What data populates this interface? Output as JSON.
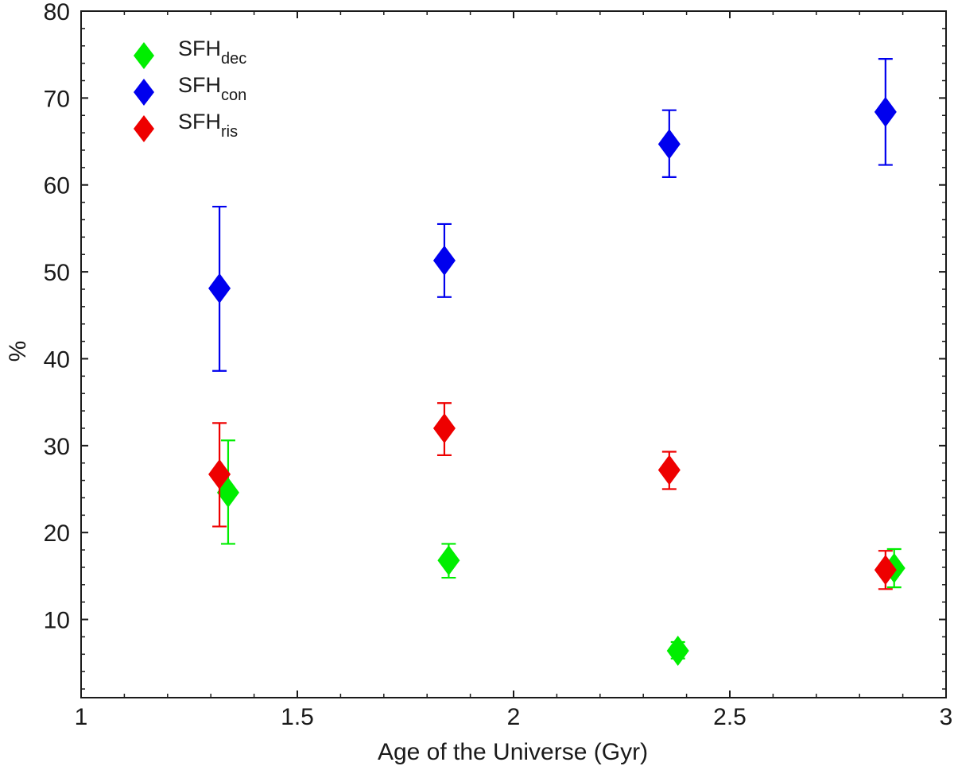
{
  "chart_data": {
    "type": "scatter",
    "xlabel": "Age of the Universe (Gyr)",
    "ylabel": "%",
    "xlim": [
      1,
      3
    ],
    "ylim": [
      1,
      80
    ],
    "xticks": [
      1,
      1.5,
      2,
      2.5,
      3
    ],
    "xtick_labels": [
      "1",
      "1.5",
      "2",
      "2.5",
      "3"
    ],
    "yticks": [
      10,
      20,
      30,
      40,
      50,
      60,
      70,
      80
    ],
    "ytick_labels": [
      "10",
      "20",
      "30",
      "40",
      "50",
      "60",
      "70",
      "80"
    ],
    "x_minor_step": 0.1,
    "y_minor_step": 2,
    "grid": false,
    "legend_position": "top-left",
    "series": [
      {
        "name_main": "SFH",
        "name_sub": "dec",
        "color": "#00ee00",
        "points": [
          {
            "x": 1.34,
            "y": 24.6,
            "err_low": 18.7,
            "err_high": 30.6
          },
          {
            "x": 1.85,
            "y": 16.8,
            "err_low": 14.8,
            "err_high": 18.7
          },
          {
            "x": 2.38,
            "y": 6.4,
            "err_low": 5.5,
            "err_high": 7.4
          },
          {
            "x": 2.88,
            "y": 15.9,
            "err_low": 13.7,
            "err_high": 18.1
          }
        ]
      },
      {
        "name_main": "SFH",
        "name_sub": "con",
        "color": "#0000ee",
        "points": [
          {
            "x": 1.32,
            "y": 48.1,
            "err_low": 38.6,
            "err_high": 57.5
          },
          {
            "x": 1.84,
            "y": 51.3,
            "err_low": 47.1,
            "err_high": 55.5
          },
          {
            "x": 2.36,
            "y": 64.7,
            "err_low": 60.9,
            "err_high": 68.6
          },
          {
            "x": 2.86,
            "y": 68.4,
            "err_low": 62.3,
            "err_high": 74.5
          }
        ]
      },
      {
        "name_main": "SFH",
        "name_sub": "ris",
        "color": "#ee0000",
        "points": [
          {
            "x": 1.32,
            "y": 26.7,
            "err_low": 20.7,
            "err_high": 32.6
          },
          {
            "x": 1.84,
            "y": 32.0,
            "err_low": 28.9,
            "err_high": 34.9
          },
          {
            "x": 2.36,
            "y": 27.2,
            "err_low": 25.0,
            "err_high": 29.3
          },
          {
            "x": 2.86,
            "y": 15.7,
            "err_low": 13.5,
            "err_high": 17.9
          }
        ]
      }
    ]
  }
}
